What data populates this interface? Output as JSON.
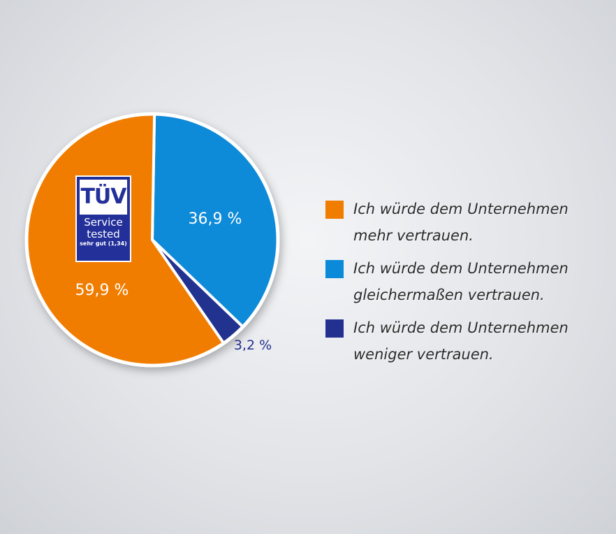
{
  "chart_data": {
    "type": "pie",
    "slices": [
      {
        "label": "Ich würde dem Unternehmen\nmehr vertrauen.",
        "value": 59.9,
        "value_label": "59,9 %",
        "color": "#f07d00"
      },
      {
        "label": "Ich würde dem Unternehmen\ngleichermaßen vertrauen.",
        "value": 36.9,
        "value_label": "36,9 %",
        "color": "#0a8ad8"
      },
      {
        "label": "Ich würde dem Unternehmen\nweniger vertrauen.",
        "value": 3.2,
        "value_label": "3,2 %",
        "color": "#24308f"
      }
    ],
    "legend_position": "right"
  },
  "badge": {
    "logo": "TÜV",
    "line1": "Service",
    "line2": "tested",
    "grade": "sehr gut (1,34)"
  }
}
